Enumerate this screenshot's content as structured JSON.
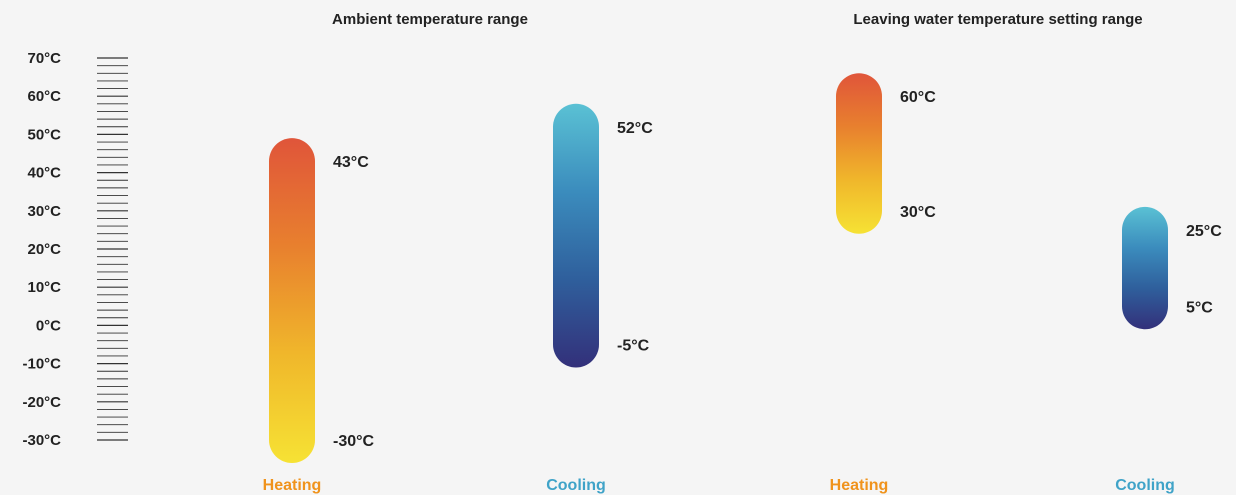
{
  "chart_data": {
    "type": "bar",
    "scale": {
      "min": -30,
      "max": 70,
      "major_step": 10,
      "minor_step": 2,
      "unit": "°C",
      "tick_labels": [
        "70°C",
        "60°C",
        "50°C",
        "40°C",
        "30°C",
        "20°C",
        "10°C",
        "0°C",
        "-10°C",
        "-20°C",
        "-30°C"
      ]
    },
    "panels": [
      {
        "title": "Ambient temperature range",
        "ranges": [
          {
            "label": "Heating",
            "min": -30,
            "max": 43,
            "min_label": "-30°C",
            "max_label": "43°C",
            "colors": [
              "#f6e234",
              "#f0b72b",
              "#e8802e",
              "#e0553a"
            ],
            "label_color": "#f0931c"
          },
          {
            "label": "Cooling",
            "min": -5,
            "max": 52,
            "min_label": "-5°C",
            "max_label": "52°C",
            "colors": [
              "#33307a",
              "#2f5f9c",
              "#3b8cbd",
              "#5ac1d4"
            ],
            "label_color": "#3fa3c8"
          }
        ]
      },
      {
        "title": "Leaving water temperature setting range",
        "ranges": [
          {
            "label": "Heating",
            "min": 30,
            "max": 60,
            "min_label": "30°C",
            "max_label": "60°C",
            "colors": [
              "#f6e234",
              "#f0b72b",
              "#e8802e",
              "#e0553a"
            ],
            "label_color": "#f0931c"
          },
          {
            "label": "Cooling",
            "min": 5,
            "max": 25,
            "min_label": "5°C",
            "max_label": "25°C",
            "colors": [
              "#33307a",
              "#2f5f9c",
              "#3b8cbd",
              "#5ac1d4"
            ],
            "label_color": "#3fa3c8"
          }
        ]
      }
    ]
  }
}
